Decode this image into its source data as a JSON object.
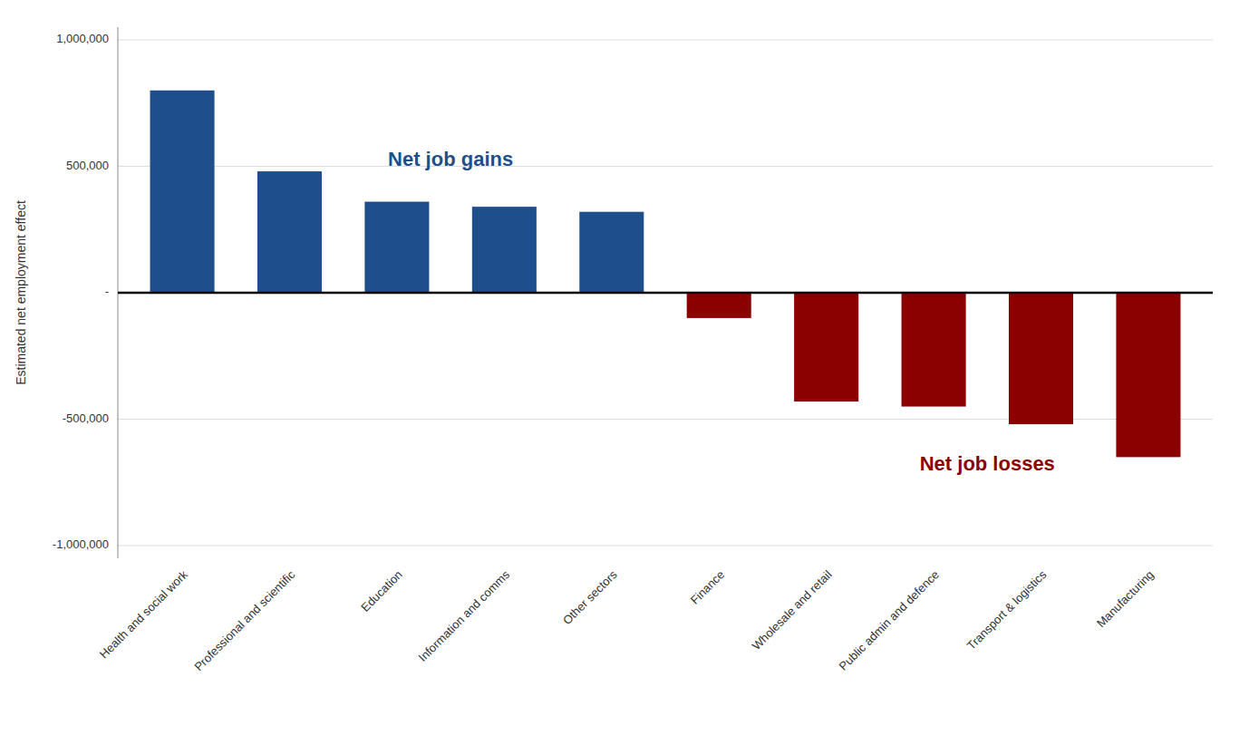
{
  "chart_data": {
    "type": "bar",
    "categories": [
      "Health and social work",
      "Professional and scientific",
      "Education",
      "Information and comms",
      "Other sectors",
      "Finance",
      "Wholesale and retail",
      "Public admin and defence",
      "Transport & logistics",
      "Manufacturing"
    ],
    "values": [
      800000,
      480000,
      360000,
      340000,
      320000,
      -100000,
      -430000,
      -450000,
      -520000,
      -650000
    ],
    "colors": [
      "#1f4e8c",
      "#1f4e8c",
      "#1f4e8c",
      "#1f4e8c",
      "#1f4e8c",
      "#8b0000",
      "#8b0000",
      "#8b0000",
      "#8b0000",
      "#8b0000"
    ],
    "ylabel": "Estimated net employment effect",
    "ylim": [
      -1050000,
      1050000
    ],
    "yticks": [
      {
        "value": -1000000,
        "label": "-1,000,000"
      },
      {
        "value": -500000,
        "label": "-500,000"
      },
      {
        "value": 0,
        "label": "-"
      },
      {
        "value": 500000,
        "label": "500,000"
      },
      {
        "value": 1000000,
        "label": "1,000,000"
      }
    ],
    "annotations": [
      {
        "text": "Net job gains",
        "color": "#1f4e8c"
      },
      {
        "text": "Net job losses",
        "color": "#8b0000"
      }
    ],
    "grid": true
  }
}
